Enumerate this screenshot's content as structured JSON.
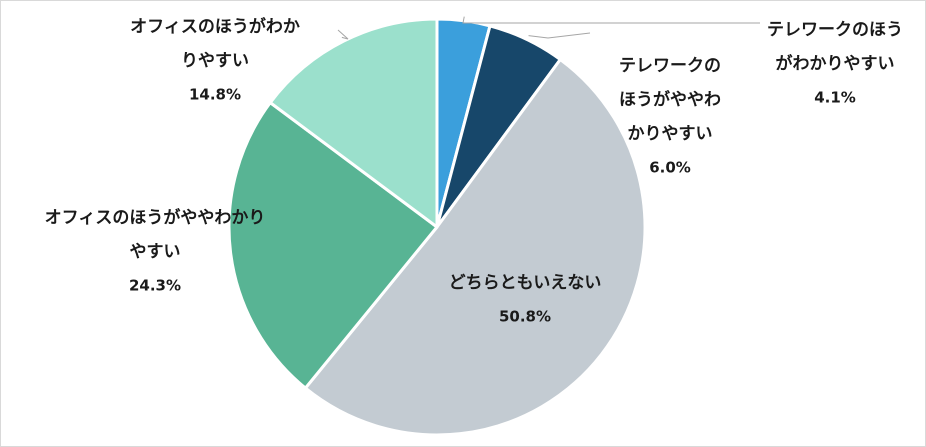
{
  "chart_data": {
    "type": "pie",
    "title": "",
    "start": "12 o'clock",
    "direction": "clockwise",
    "series": [
      {
        "name": "テレワークのほうがわかりやすい",
        "value": 4.1,
        "value_label": "4.1%",
        "color": "#3b9fdc",
        "label_lines": [
          "テレワークのほう",
          "がわかりやすい"
        ]
      },
      {
        "name": "テレワークのほうがややわかりやすい",
        "value": 6.0,
        "value_label": "6.0%",
        "color": "#17476a",
        "label_lines": [
          "テレワークの",
          "ほうがややわ",
          "かりやすい"
        ]
      },
      {
        "name": "どちらともいえない",
        "value": 50.8,
        "value_label": "50.8%",
        "color": "#c3cbd2",
        "label_lines": [
          "どちらともいえない"
        ]
      },
      {
        "name": "オフィスのほうがややわかりやすい",
        "value": 24.3,
        "value_label": "24.3%",
        "color": "#58b494",
        "label_lines": [
          "オフィスのほうがややわかり",
          "やすい"
        ]
      },
      {
        "name": "オフィスのほうがわかりやすい",
        "value": 14.8,
        "value_label": "14.8%",
        "color": "#9be0cc",
        "label_lines": [
          "オフィスのほうがわか",
          "りやすい"
        ]
      }
    ]
  }
}
